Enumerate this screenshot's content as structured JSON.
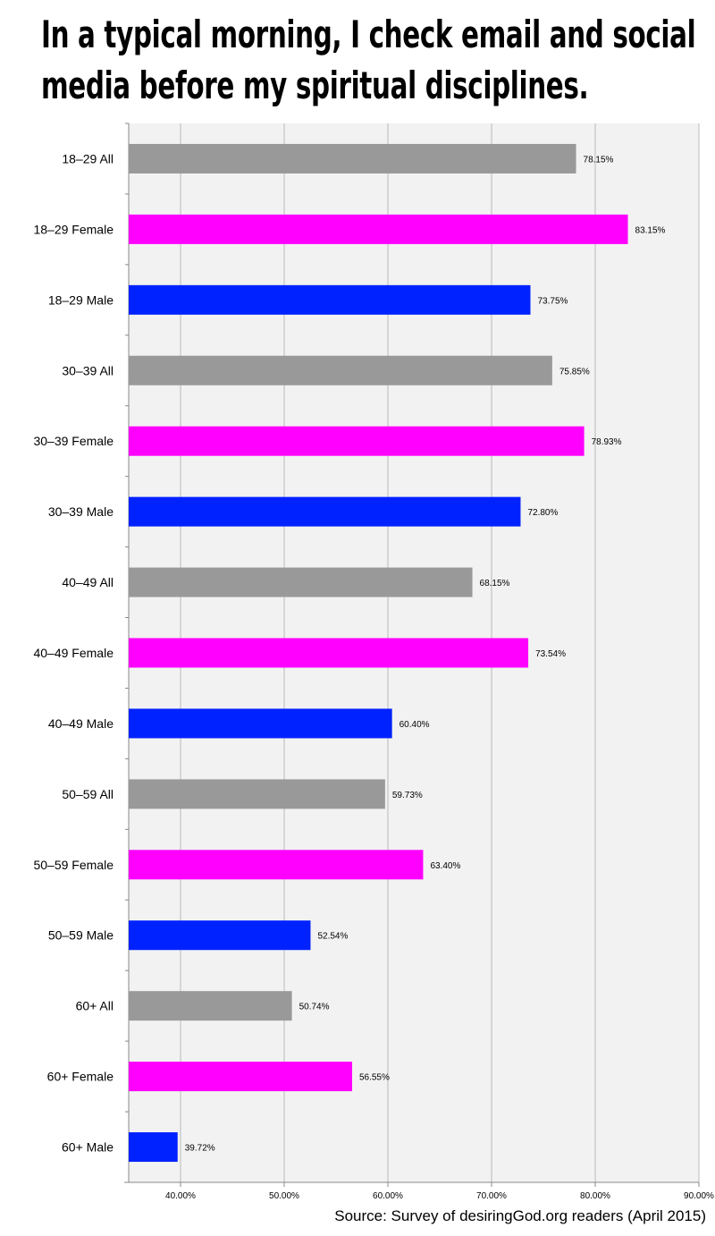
{
  "title": {
    "line1": "In a typical morning, I check email and social",
    "line2": "media before my spiritual disciplines."
  },
  "source": "Source: Survey of desiringGod.org readers (April 2015)",
  "colors": {
    "all": "#999999",
    "female": "#ff00ff",
    "male": "#0022ff",
    "plot_background": "#f2f2f2",
    "gridline": "#bbbbbb"
  },
  "chart_data": {
    "type": "bar",
    "orientation": "horizontal",
    "title": "In a typical morning, I check email and social media before my spiritual disciplines.",
    "xlabel": "",
    "ylabel": "",
    "xlim": [
      35,
      90
    ],
    "x_ticks": [
      "40.00%",
      "50.00%",
      "60.00%",
      "70.00%",
      "80.00%",
      "90.00%"
    ],
    "x_tick_values": [
      40,
      50,
      60,
      70,
      80,
      90
    ],
    "grid": "vertical",
    "legend": "none",
    "categories": [
      "18–29 All",
      "18–29 Female",
      "18–29 Male",
      "30–39 All",
      "30–39 Female",
      "30–39 Male",
      "40–49 All",
      "40–49 Female",
      "40–49 Male",
      "50–59 All",
      "50–59 Female",
      "50–59 Male",
      "60+ All",
      "60+ Female",
      "60+ Male"
    ],
    "values": [
      78.15,
      83.15,
      73.75,
      75.85,
      78.93,
      72.8,
      68.15,
      73.54,
      60.4,
      59.73,
      63.4,
      52.54,
      50.74,
      56.55,
      39.72
    ],
    "value_labels": [
      "78.15%",
      "83.15%",
      "73.75%",
      "75.85%",
      "78.93%",
      "72.80%",
      "68.15%",
      "73.54%",
      "60.40%",
      "59.73%",
      "63.40%",
      "52.54%",
      "50.74%",
      "56.55%",
      "39.72%"
    ],
    "bar_groups": [
      "all",
      "female",
      "male",
      "all",
      "female",
      "male",
      "all",
      "female",
      "male",
      "all",
      "female",
      "male",
      "all",
      "female",
      "male"
    ]
  }
}
